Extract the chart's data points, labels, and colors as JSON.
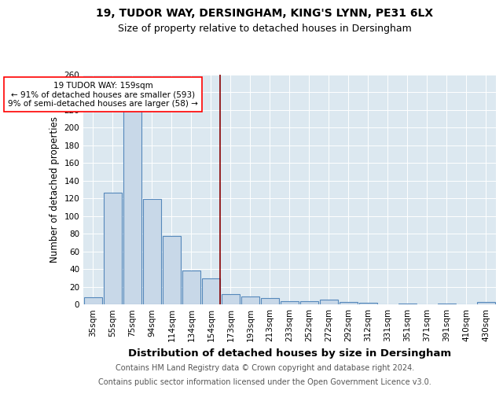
{
  "title1": "19, TUDOR WAY, DERSINGHAM, KING'S LYNN, PE31 6LX",
  "title2": "Size of property relative to detached houses in Dersingham",
  "xlabel": "Distribution of detached houses by size in Dersingham",
  "ylabel": "Number of detached properties",
  "bin_labels": [
    "35sqm",
    "55sqm",
    "75sqm",
    "94sqm",
    "114sqm",
    "134sqm",
    "154sqm",
    "173sqm",
    "193sqm",
    "213sqm",
    "233sqm",
    "252sqm",
    "272sqm",
    "292sqm",
    "312sqm",
    "331sqm",
    "351sqm",
    "371sqm",
    "391sqm",
    "410sqm",
    "430sqm"
  ],
  "bar_values": [
    8,
    126,
    246,
    119,
    77,
    38,
    29,
    12,
    9,
    7,
    4,
    4,
    5,
    3,
    2,
    0,
    1,
    0,
    1,
    0,
    3
  ],
  "bar_color": "#c8d8e8",
  "bar_edge_color": "#5588bb",
  "vline_x_idx": 6,
  "vline_color": "#880000",
  "annotation_text": "19 TUDOR WAY: 159sqm\n← 91% of detached houses are smaller (593)\n9% of semi-detached houses are larger (58) →",
  "ylim": [
    0,
    260
  ],
  "yticks": [
    0,
    20,
    40,
    60,
    80,
    100,
    120,
    140,
    160,
    180,
    200,
    220,
    240,
    260
  ],
  "footer1": "Contains HM Land Registry data © Crown copyright and database right 2024.",
  "footer2": "Contains public sector information licensed under the Open Government Licence v3.0.",
  "plot_bg_color": "#dce8f0",
  "title1_fontsize": 10,
  "title2_fontsize": 9,
  "xlabel_fontsize": 9.5,
  "ylabel_fontsize": 8.5,
  "tick_fontsize": 7.5,
  "footer_fontsize": 7,
  "annotation_fontsize": 7.5
}
